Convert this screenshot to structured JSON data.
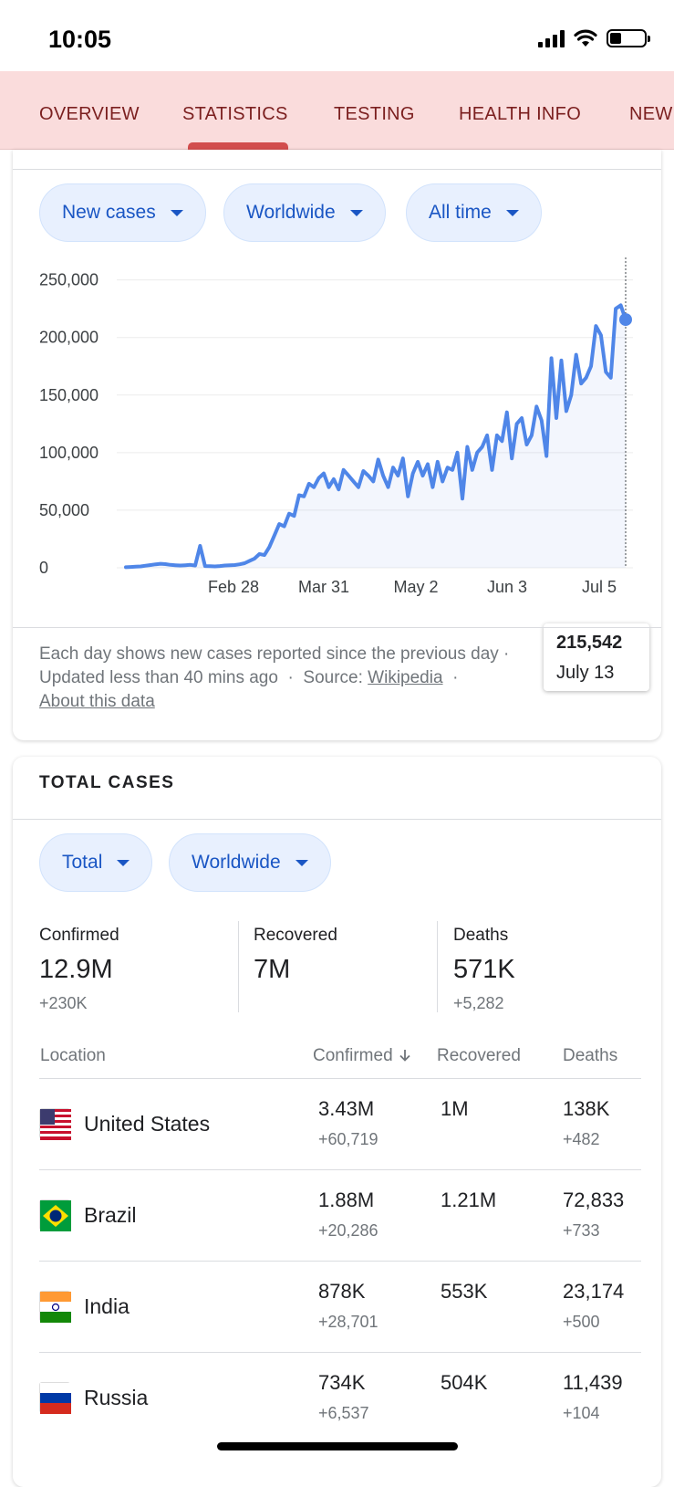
{
  "status_bar": {
    "time": "10:05"
  },
  "tabs": [
    {
      "label": "OVERVIEW"
    },
    {
      "label": "STATISTICS"
    },
    {
      "label": "TESTING"
    },
    {
      "label": "HEALTH INFO"
    },
    {
      "label": "NEW"
    }
  ],
  "active_tab": "STATISTICS",
  "daily_card": {
    "filters": [
      "New cases",
      "Worldwide",
      "All time"
    ],
    "tooltip": {
      "value": "215,542",
      "date": "July 13"
    },
    "note": {
      "line1": "Each day shows new cases reported since the previous day ·",
      "updated": "Updated less than 40 mins ago",
      "source_label": "Source:",
      "source_link": "Wikipedia",
      "about_link": "About this data"
    }
  },
  "chart_data": {
    "type": "line",
    "title": "",
    "xlabel": "",
    "ylabel": "",
    "ylim": [
      0,
      260000
    ],
    "y_ticks": [
      "250,000",
      "200,000",
      "150,000",
      "100,000",
      "50,000",
      "0"
    ],
    "x_ticks": [
      "Feb 28",
      "Mar 31",
      "May 2",
      "Jun 3",
      "Jul 5"
    ],
    "series": [
      {
        "values": [
          500,
          700,
          1000,
          1200,
          1800,
          2400,
          3000,
          3500,
          3200,
          2500,
          2200,
          2000,
          2200,
          2500,
          2000,
          19000,
          1500,
          1400,
          1200,
          1500,
          2000,
          2200,
          2400,
          3000,
          4000,
          6000,
          8000,
          12000,
          11000,
          18000,
          28000,
          38000,
          36000,
          47000,
          45000,
          63000,
          62000,
          73000,
          70000,
          78000,
          82000,
          70000,
          77000,
          68000,
          85000,
          80000,
          75000,
          70000,
          84000,
          80000,
          75000,
          94000,
          80000,
          70000,
          87000,
          80000,
          95000,
          62000,
          82000,
          92000,
          80000,
          90000,
          70000,
          92000,
          75000,
          87000,
          85000,
          100000,
          60000,
          105000,
          85000,
          100000,
          105000,
          115000,
          85000,
          115000,
          110000,
          135000,
          95000,
          125000,
          130000,
          107000,
          115000,
          140000,
          128000,
          97000,
          182000,
          130000,
          180000,
          136000,
          150000,
          185000,
          160000,
          165000,
          175000,
          210000,
          202000,
          170000,
          165000,
          225000,
          228000,
          215542
        ]
      }
    ],
    "highlight": {
      "date": "July 13",
      "value": 215542
    },
    "grid": true
  },
  "totals_card": {
    "title": "TOTAL CASES",
    "filters": [
      "Total",
      "Worldwide"
    ],
    "summary": [
      {
        "label": "Confirmed",
        "value": "12.9M",
        "delta": "+230K"
      },
      {
        "label": "Recovered",
        "value": "7M",
        "delta": ""
      },
      {
        "label": "Deaths",
        "value": "571K",
        "delta": "+5,282"
      }
    ],
    "columns": [
      "Location",
      "Confirmed",
      "Recovered",
      "Deaths"
    ],
    "sort_icon": "arrow-down-icon",
    "rows": [
      {
        "flag": "us-flag-icon",
        "location": "United States",
        "confirmed": "3.43M",
        "confirmed_delta": "+60,719",
        "recovered": "1M",
        "deaths": "138K",
        "deaths_delta": "+482"
      },
      {
        "flag": "brazil-flag-icon",
        "location": "Brazil",
        "confirmed": "1.88M",
        "confirmed_delta": "+20,286",
        "recovered": "1.21M",
        "deaths": "72,833",
        "deaths_delta": "+733"
      },
      {
        "flag": "india-flag-icon",
        "location": "India",
        "confirmed": "878K",
        "confirmed_delta": "+28,701",
        "recovered": "553K",
        "deaths": "23,174",
        "deaths_delta": "+500"
      },
      {
        "flag": "russia-flag-icon",
        "location": "Russia",
        "confirmed": "734K",
        "confirmed_delta": "+6,537",
        "recovered": "504K",
        "deaths": "11,439",
        "deaths_delta": "+104"
      }
    ]
  },
  "colors": {
    "tab_bg": "#fadcdc",
    "tab_text": "#7b1f1f",
    "tab_indicator": "#d24d4d",
    "chip_bg": "#e8f0fe",
    "chip_text": "#1a56c4",
    "line": "#4f86e8"
  }
}
